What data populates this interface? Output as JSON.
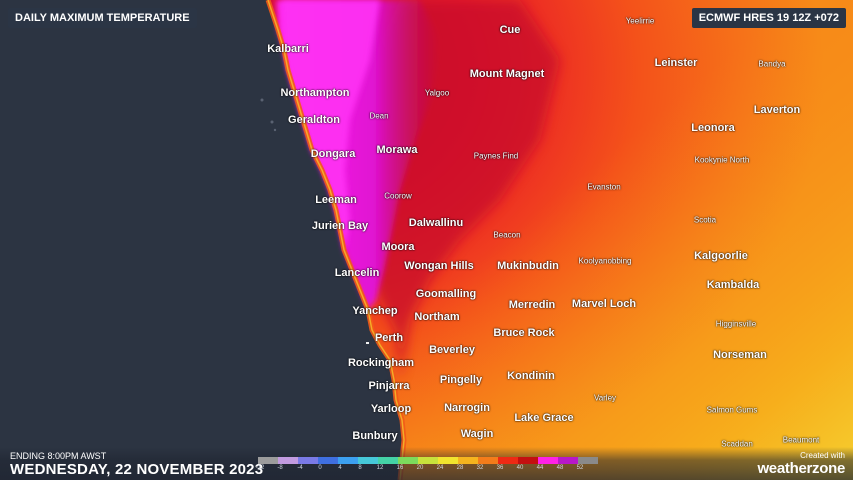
{
  "header": {
    "title": "DAILY MAXIMUM TEMPERATURE",
    "model": "ECMWF HRES 19 12Z +072"
  },
  "footer": {
    "ending": "ENDING 8:00PM AWST",
    "date": "WEDNESDAY, 22 NOVEMBER 2023"
  },
  "brand": {
    "created_with": "Created with",
    "name": "weatherzone"
  },
  "legend": {
    "ticks": [
      "-12",
      "-8",
      "-4",
      "0",
      "4",
      "8",
      "12",
      "16",
      "20",
      "24",
      "28",
      "32",
      "36",
      "40",
      "44",
      "48",
      "52"
    ],
    "colors": [
      "#9c9c9c",
      "#c29be0",
      "#7a7ae6",
      "#3f6fe0",
      "#3ca0f0",
      "#46c8d8",
      "#44d2a6",
      "#7cda5c",
      "#c8e23c",
      "#f2e42e",
      "#f6b41e",
      "#f47c1a",
      "#ee2a14",
      "#c41010",
      "#ff22e6",
      "#b818c8",
      "#8a8a8a"
    ]
  },
  "places": {
    "kalbarri": "Kalbarri",
    "northampton": "Northampton",
    "geraldton": "Geraldton",
    "dongara": "Dongara",
    "leeman": "Leeman",
    "jurien_bay": "Jurien Bay",
    "lancelin": "Lancelin",
    "yanchep": "Yanchep",
    "perth": "Perth",
    "rockingham": "Rockingham",
    "pinjarra": "Pinjarra",
    "yarloop": "Yarloop",
    "bunbury": "Bunbury",
    "cue": "Cue",
    "yeelirrie": "Yeelirrie",
    "mount_magnet": "Mount Magnet",
    "leinster": "Leinster",
    "bandya": "Bandya",
    "yalgoo": "Yalgoo",
    "laverton": "Laverton",
    "dean": "Dean",
    "leonora": "Leonora",
    "morawa": "Morawa",
    "paynes_find": "Paynes Find",
    "kookynie_north": "Kookynie North",
    "coorow": "Coorow",
    "evanston": "Evanston",
    "dalwallinu": "Dalwallinu",
    "scotia": "Scotia",
    "beacon": "Beacon",
    "moora": "Moora",
    "kalgoorlie": "Kalgoorlie",
    "wongan_hills": "Wongan Hills",
    "mukinbudin": "Mukinbudin",
    "koolyanobbing": "Koolyanobbing",
    "kambalda": "Kambalda",
    "goomalling": "Goomalling",
    "merredin": "Merredin",
    "marvel_loch": "Marvel Loch",
    "northam": "Northam",
    "higginsville": "Higginsville",
    "bruce_rock": "Bruce Rock",
    "norseman": "Norseman",
    "beverley": "Beverley",
    "kondinin": "Kondinin",
    "pingelly": "Pingelly",
    "varley": "Varley",
    "narrogin": "Narrogin",
    "salmon_gums": "Salmon Gums",
    "lake_grace": "Lake Grace",
    "wagin": "Wagin",
    "scaddan": "Scaddan",
    "beaumont": "Beaumont"
  }
}
